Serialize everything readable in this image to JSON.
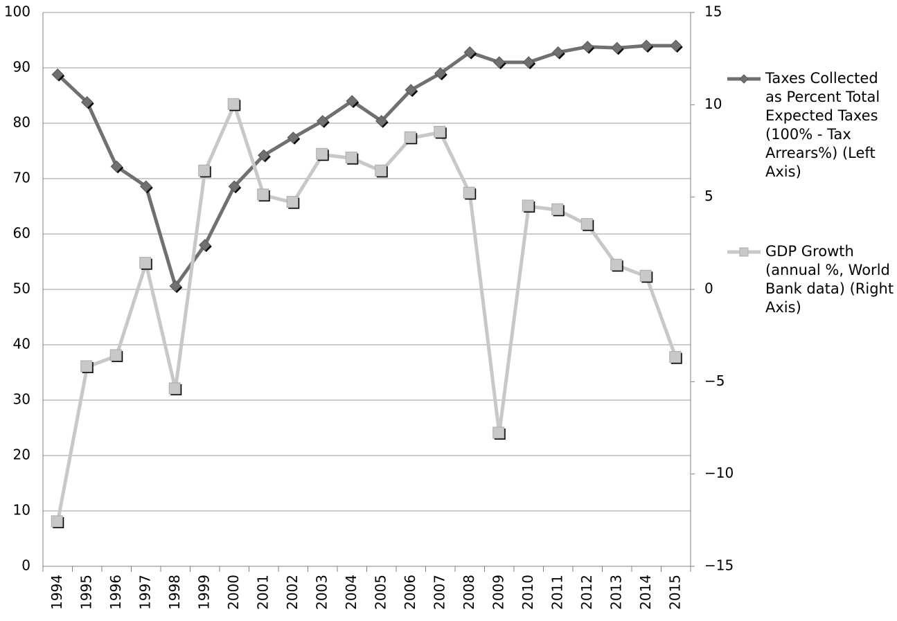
{
  "chart_data": {
    "type": "line",
    "categories": [
      "1994",
      "1995",
      "1996",
      "1997",
      "1998",
      "1999",
      "2000",
      "2001",
      "2002",
      "2003",
      "2004",
      "2005",
      "2006",
      "2007",
      "2008",
      "2009",
      "2010",
      "2011",
      "2012",
      "2013",
      "2014",
      "2015"
    ],
    "series": [
      {
        "name": "Taxes Collected as Percent Total Expected Taxes (100% - Tax Arrears%) (Left Axis)",
        "color": "#707070",
        "marker": "diamond",
        "values": [
          88.8,
          83.8,
          72.2,
          68.6,
          50.6,
          58,
          68.6,
          74.2,
          77.4,
          80.4,
          84,
          80.4,
          86,
          89,
          92.8,
          91,
          91,
          92.8,
          93.8,
          93.6,
          94,
          94
        ]
      },
      {
        "name": "GDP Growth (annual %, World Bank data) (Right Axis)",
        "color": "#c8c8c8",
        "marker": "square",
        "axis": "y2",
        "values": [
          -12.6,
          -4.2,
          -3.6,
          1.4,
          -5.4,
          6.4,
          10.0,
          5.1,
          4.7,
          7.3,
          7.1,
          6.4,
          8.2,
          8.5,
          5.2,
          -7.8,
          4.5,
          4.3,
          3.5,
          1.3,
          0.7,
          -3.7
        ]
      }
    ],
    "ylim": [
      0,
      100
    ],
    "yticks": [
      0,
      10,
      20,
      30,
      40,
      50,
      60,
      70,
      80,
      90,
      100
    ],
    "y2lim": [
      -15,
      15
    ],
    "y2ticks": [
      {
        "value": -15,
        "label": "−15"
      },
      {
        "value": -10,
        "label": "−10"
      },
      {
        "value": -5,
        "label": "−5"
      },
      0,
      5,
      10,
      15
    ],
    "grid": true,
    "legend": "right"
  }
}
